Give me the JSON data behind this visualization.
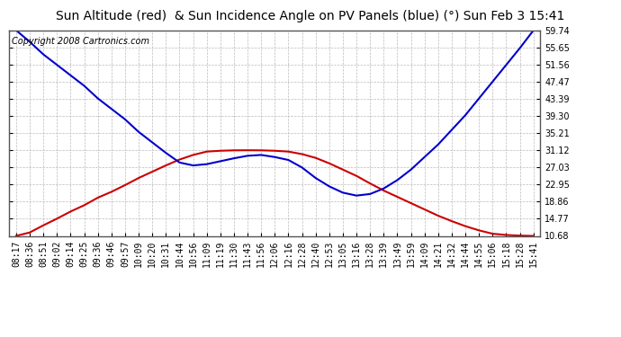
{
  "title": "Sun Altitude (red)  & Sun Incidence Angle on PV Panels (blue) (°) Sun Feb 3 15:41",
  "copyright": "Copyright 2008 Cartronics.com",
  "yticks": [
    10.68,
    14.77,
    18.86,
    22.95,
    27.03,
    31.12,
    35.21,
    39.3,
    43.39,
    47.47,
    51.56,
    55.65,
    59.74
  ],
  "ylim": [
    10.68,
    59.74
  ],
  "x_labels": [
    "08:17",
    "08:36",
    "08:51",
    "09:02",
    "09:14",
    "09:25",
    "09:36",
    "09:46",
    "09:57",
    "10:09",
    "10:20",
    "10:31",
    "10:44",
    "10:56",
    "11:09",
    "11:19",
    "11:30",
    "11:43",
    "11:56",
    "12:06",
    "12:16",
    "12:28",
    "12:40",
    "12:53",
    "13:05",
    "13:16",
    "13:28",
    "13:39",
    "13:49",
    "13:59",
    "14:09",
    "14:21",
    "14:32",
    "14:44",
    "14:55",
    "15:06",
    "15:18",
    "15:28",
    "15:41"
  ],
  "background_color": "#ffffff",
  "plot_bg_color": "#ffffff",
  "grid_color": "#bbbbbb",
  "red_color": "#cc0000",
  "blue_color": "#0000cc",
  "title_fontsize": 10,
  "tick_fontsize": 7,
  "copyright_fontsize": 7,
  "red_data": [
    10.68,
    11.5,
    13.2,
    14.8,
    16.5,
    18.0,
    19.8,
    21.2,
    22.8,
    24.5,
    26.0,
    27.5,
    28.9,
    30.0,
    30.8,
    31.0,
    31.1,
    31.12,
    31.1,
    31.0,
    30.8,
    30.2,
    29.3,
    28.0,
    26.5,
    25.0,
    23.2,
    21.5,
    20.0,
    18.5,
    17.0,
    15.5,
    14.2,
    13.0,
    12.0,
    11.2,
    10.9,
    10.75,
    10.68
  ],
  "blue_data": [
    59.74,
    57.0,
    54.0,
    51.5,
    49.0,
    46.5,
    43.5,
    41.0,
    38.5,
    35.5,
    33.0,
    30.5,
    28.2,
    27.5,
    27.8,
    28.5,
    29.2,
    29.8,
    30.0,
    29.5,
    28.8,
    27.0,
    24.5,
    22.5,
    21.0,
    20.3,
    20.68,
    22.0,
    24.0,
    26.5,
    29.5,
    32.5,
    36.0,
    39.5,
    43.5,
    47.5,
    51.5,
    55.5,
    59.74
  ]
}
